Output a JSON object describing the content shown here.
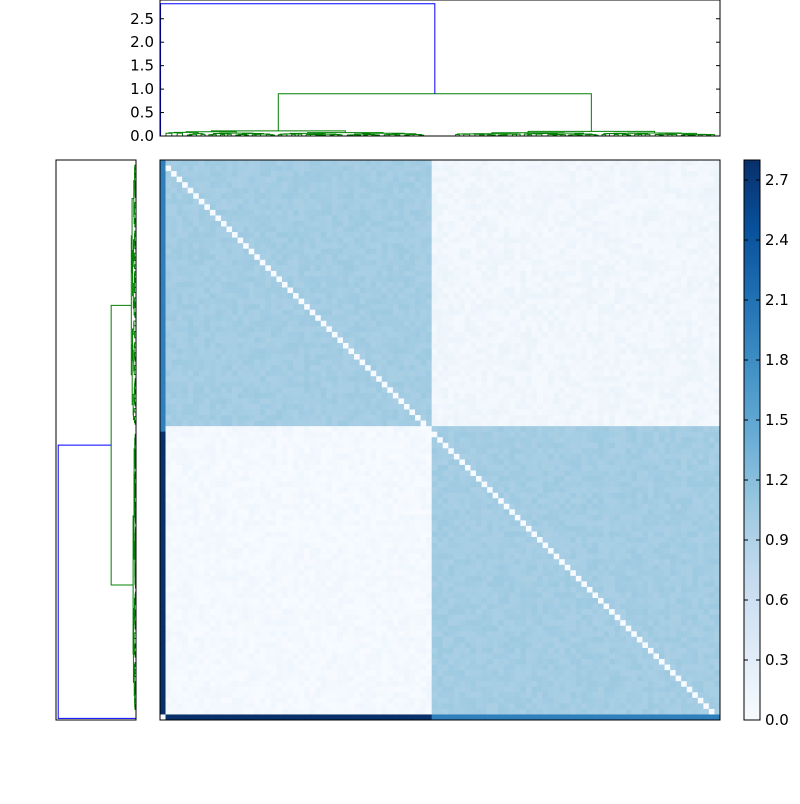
{
  "chart_data": [
    {
      "type": "dendrogram",
      "panel": "top",
      "title": "",
      "xlabel": "",
      "ylabel": "",
      "ylim": [
        0,
        2.9
      ],
      "yticks": [
        "0.0",
        "0.5",
        "1.0",
        "1.5",
        "2.0",
        "2.5"
      ],
      "ytick_values": [
        0.0,
        0.5,
        1.0,
        1.5,
        2.0,
        2.5
      ],
      "merges": [
        {
          "height": 2.82,
          "color": "#0000ff",
          "desc": "root"
        },
        {
          "height": 0.9,
          "color": "#008000",
          "desc": "major cluster split"
        },
        {
          "height": 0.18,
          "color": "#008000",
          "desc": "cluster A"
        },
        {
          "height": 0.17,
          "color": "#008000",
          "desc": "cluster B"
        }
      ],
      "leaf_count": 100
    },
    {
      "type": "dendrogram",
      "panel": "left",
      "title": "",
      "orientation": "left",
      "merges": [
        {
          "height": 2.82,
          "color": "#0000ff",
          "desc": "root"
        },
        {
          "height": 0.9,
          "color": "#008000",
          "desc": "major cluster split"
        }
      ],
      "leaf_count": 100
    },
    {
      "type": "heatmap",
      "title": "",
      "xlabel": "",
      "ylabel": "",
      "rows": 101,
      "cols": 101,
      "block_values": {
        "top_left": 1.0,
        "top_right": 0.1,
        "bottom_left": 0.05,
        "bottom_right": 1.0,
        "diagonal": 0.0
      },
      "edge_column": {
        "upper_rows": 1.95,
        "lower_rows": 2.8
      },
      "edge_row": {
        "left_cols": 2.8,
        "right_cols": 1.95
      },
      "colormap": "Blues",
      "vmin": 0.0,
      "vmax": 2.8
    },
    {
      "type": "colorbar",
      "ticks": [
        "0.0",
        "0.3",
        "0.6",
        "0.9",
        "1.2",
        "1.5",
        "1.8",
        "2.1",
        "2.4",
        "2.7"
      ],
      "tick_values": [
        0.0,
        0.3,
        0.6,
        0.9,
        1.2,
        1.5,
        1.8,
        2.1,
        2.4,
        2.7
      ],
      "vmin": 0.0,
      "vmax": 2.8
    }
  ],
  "colors": {
    "root_link": "#0000ff",
    "cluster_link": "#008000",
    "axis": "#000000"
  }
}
